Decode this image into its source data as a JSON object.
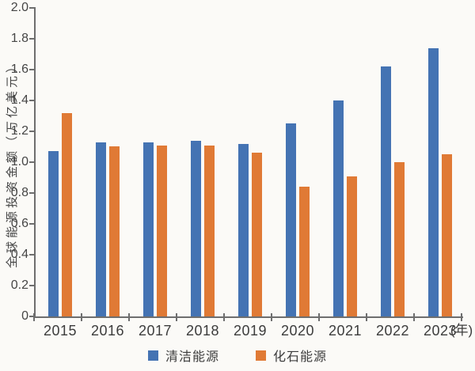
{
  "chart_data": {
    "type": "bar",
    "title": "",
    "categories": [
      "2015",
      "2016",
      "2017",
      "2018",
      "2019",
      "2020",
      "2021",
      "2022",
      "2023"
    ],
    "x_unit_suffix": "(年)",
    "xlabel": "",
    "ylabel": "全球能源投资金额（万亿美元）",
    "ylim": [
      0,
      2.0
    ],
    "ytick_step": 0.2,
    "ytick_labels": [
      "0",
      "0.2",
      "0.4",
      "0.6",
      "0.8",
      "1.0",
      "1.2",
      "1.4",
      "1.6",
      "1.8",
      "2.0"
    ],
    "grid": false,
    "legend_position": "bottom",
    "series": [
      {
        "key": "clean",
        "name": "清洁能源",
        "color": "#4473b3",
        "values": [
          1.07,
          1.13,
          1.13,
          1.14,
          1.12,
          1.25,
          1.4,
          1.62,
          1.74
        ]
      },
      {
        "key": "fossil",
        "name": "化石能源",
        "color": "#e07a35",
        "values": [
          1.32,
          1.1,
          1.11,
          1.11,
          1.06,
          0.84,
          0.91,
          1.0,
          1.05
        ]
      }
    ]
  }
}
